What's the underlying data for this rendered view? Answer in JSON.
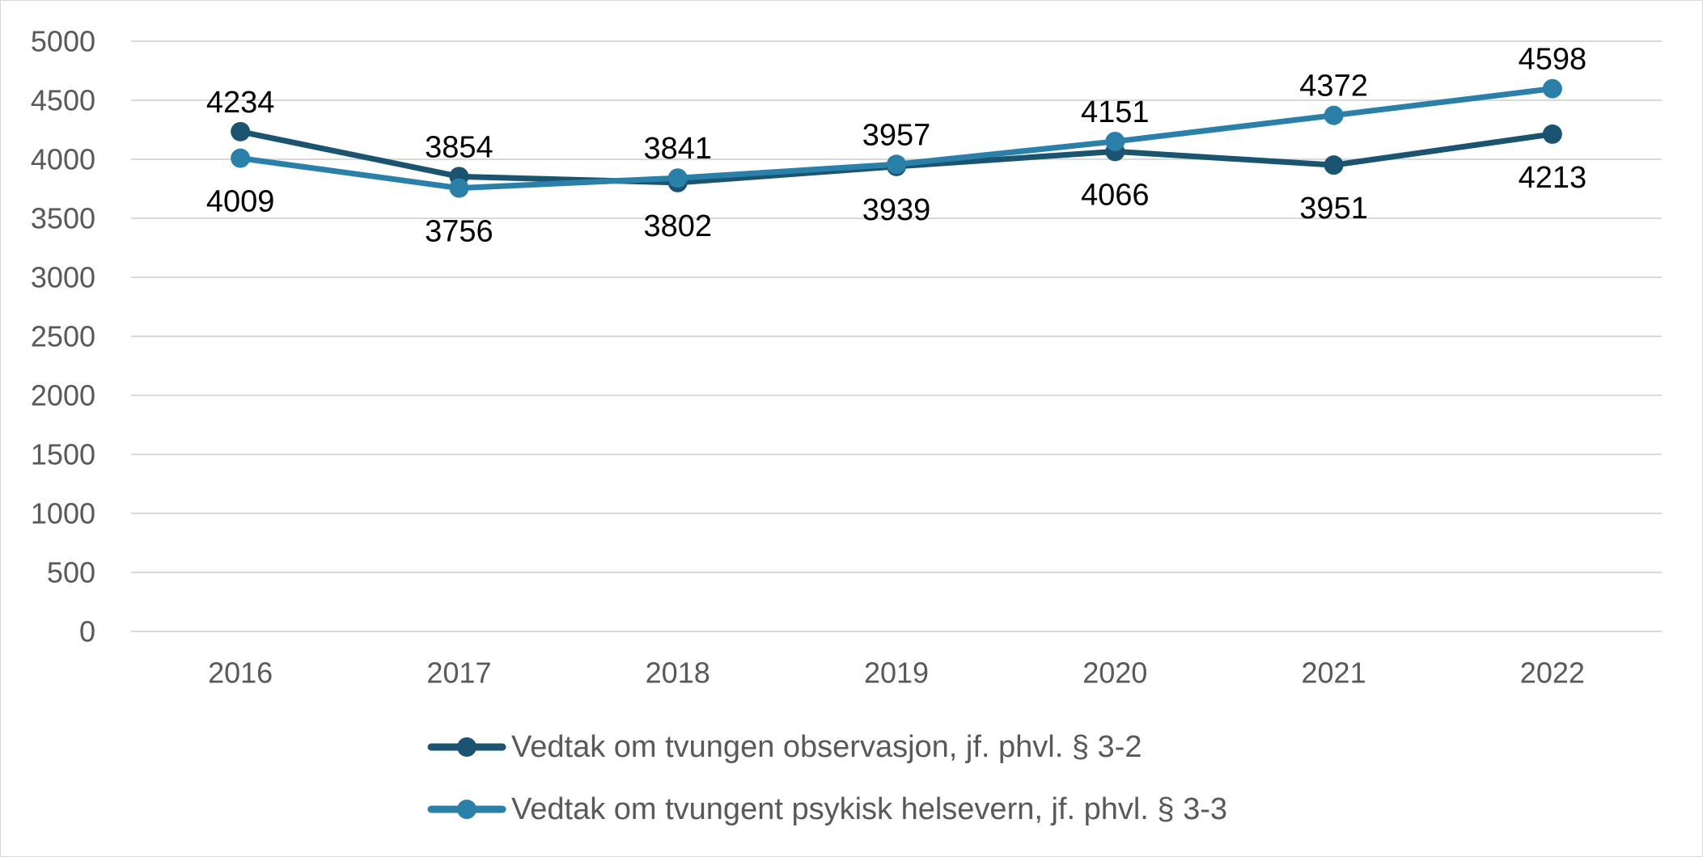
{
  "chart_data": {
    "type": "line",
    "title": "",
    "xlabel": "",
    "ylabel": "",
    "categories": [
      "2016",
      "2017",
      "2018",
      "2019",
      "2020",
      "2021",
      "2022"
    ],
    "ylim": [
      0,
      5000
    ],
    "yticks": [
      0,
      500,
      1000,
      1500,
      2000,
      2500,
      3000,
      3500,
      4000,
      4500,
      5000
    ],
    "grid": true,
    "legend_position": "bottom",
    "data_labels": true,
    "series": [
      {
        "name": "Vedtak om tvungen observasjon, jf. phvl. § 3-2",
        "color": "#1a5470",
        "values": [
          4234,
          3854,
          3802,
          3939,
          4066,
          3951,
          4213
        ]
      },
      {
        "name": "Vedtak om tvungent psykisk helsevern, jf. phvl. § 3-3",
        "color": "#2a80a8",
        "values": [
          4009,
          3756,
          3841,
          3957,
          4151,
          4372,
          4598
        ]
      }
    ]
  }
}
